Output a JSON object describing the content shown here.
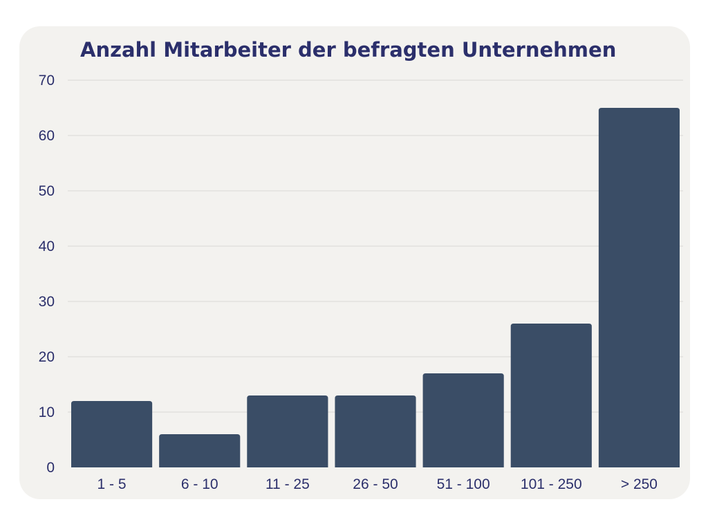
{
  "chart_data": {
    "type": "bar",
    "title": "Anzahl Mitarbeiter der befragten Unternehmen",
    "xlabel": "",
    "ylabel": "",
    "categories": [
      "1 - 5",
      "6 - 10",
      "11 - 25",
      "26 - 50",
      "51 - 100",
      "101 - 250",
      "> 250"
    ],
    "values": [
      12,
      6,
      13,
      13,
      17,
      26,
      65
    ],
    "ylim": [
      0,
      70
    ],
    "yticks": [
      0,
      10,
      20,
      30,
      40,
      50,
      60,
      70
    ],
    "grid": true,
    "legend": "none",
    "colors": {
      "bar": "#3a4d66",
      "grid": "#d9d8d4",
      "text": "#2b2f6b",
      "background": "#f3f2ef"
    }
  }
}
